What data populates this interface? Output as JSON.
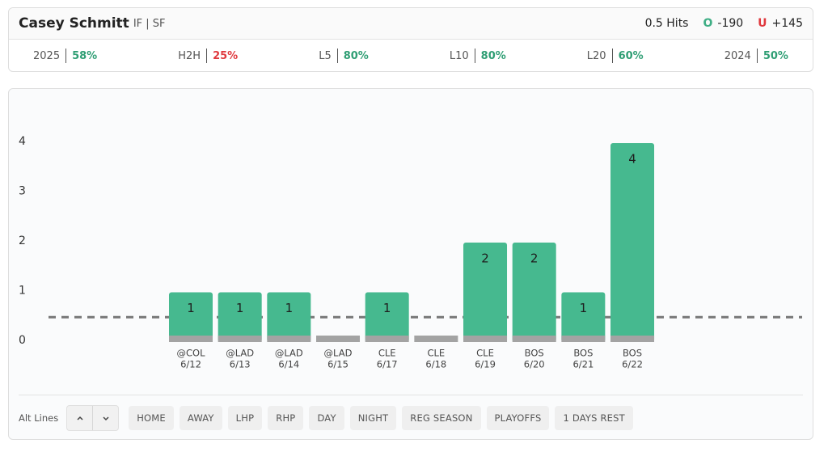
{
  "header": {
    "player": "Casey Schmitt",
    "position": "IF | SF",
    "prop": "0.5 Hits",
    "over": {
      "label": "O",
      "odds": "-190",
      "color": "#3fae85"
    },
    "under": {
      "label": "U",
      "odds": "+145",
      "color": "#e0393e"
    }
  },
  "stats": [
    {
      "label": "2025",
      "value": "58%",
      "color": "#2f9e74"
    },
    {
      "label": "H2H",
      "value": "25%",
      "color": "#e0393e"
    },
    {
      "label": "L5",
      "value": "80%",
      "color": "#2f9e74"
    },
    {
      "label": "L10",
      "value": "80%",
      "color": "#2f9e74"
    },
    {
      "label": "L20",
      "value": "60%",
      "color": "#2f9e74"
    },
    {
      "label": "2024",
      "value": "50%",
      "color": "#2f9e74"
    }
  ],
  "chart_data": {
    "type": "bar",
    "categories": [
      "@COL",
      "@LAD",
      "@LAD",
      "@LAD",
      "CLE",
      "CLE",
      "CLE",
      "BOS",
      "BOS",
      "BOS"
    ],
    "dates": [
      "6/12",
      "6/13",
      "6/14",
      "6/15",
      "6/17",
      "6/18",
      "6/19",
      "6/20",
      "6/21",
      "6/22"
    ],
    "values": [
      1,
      1,
      1,
      0,
      1,
      0,
      2,
      2,
      1,
      4
    ],
    "color": "#46b98f",
    "base_color": "#a3a3a3",
    "line": 0.5,
    "ylim": [
      0,
      4
    ],
    "yticks": [
      0,
      1,
      2,
      3,
      4
    ]
  },
  "filters": {
    "alt_lines": "Alt Lines",
    "buttons": [
      "HOME",
      "AWAY",
      "LHP",
      "RHP",
      "DAY",
      "NIGHT",
      "REG SEASON",
      "PLAYOFFS",
      "1 DAYS REST"
    ]
  }
}
